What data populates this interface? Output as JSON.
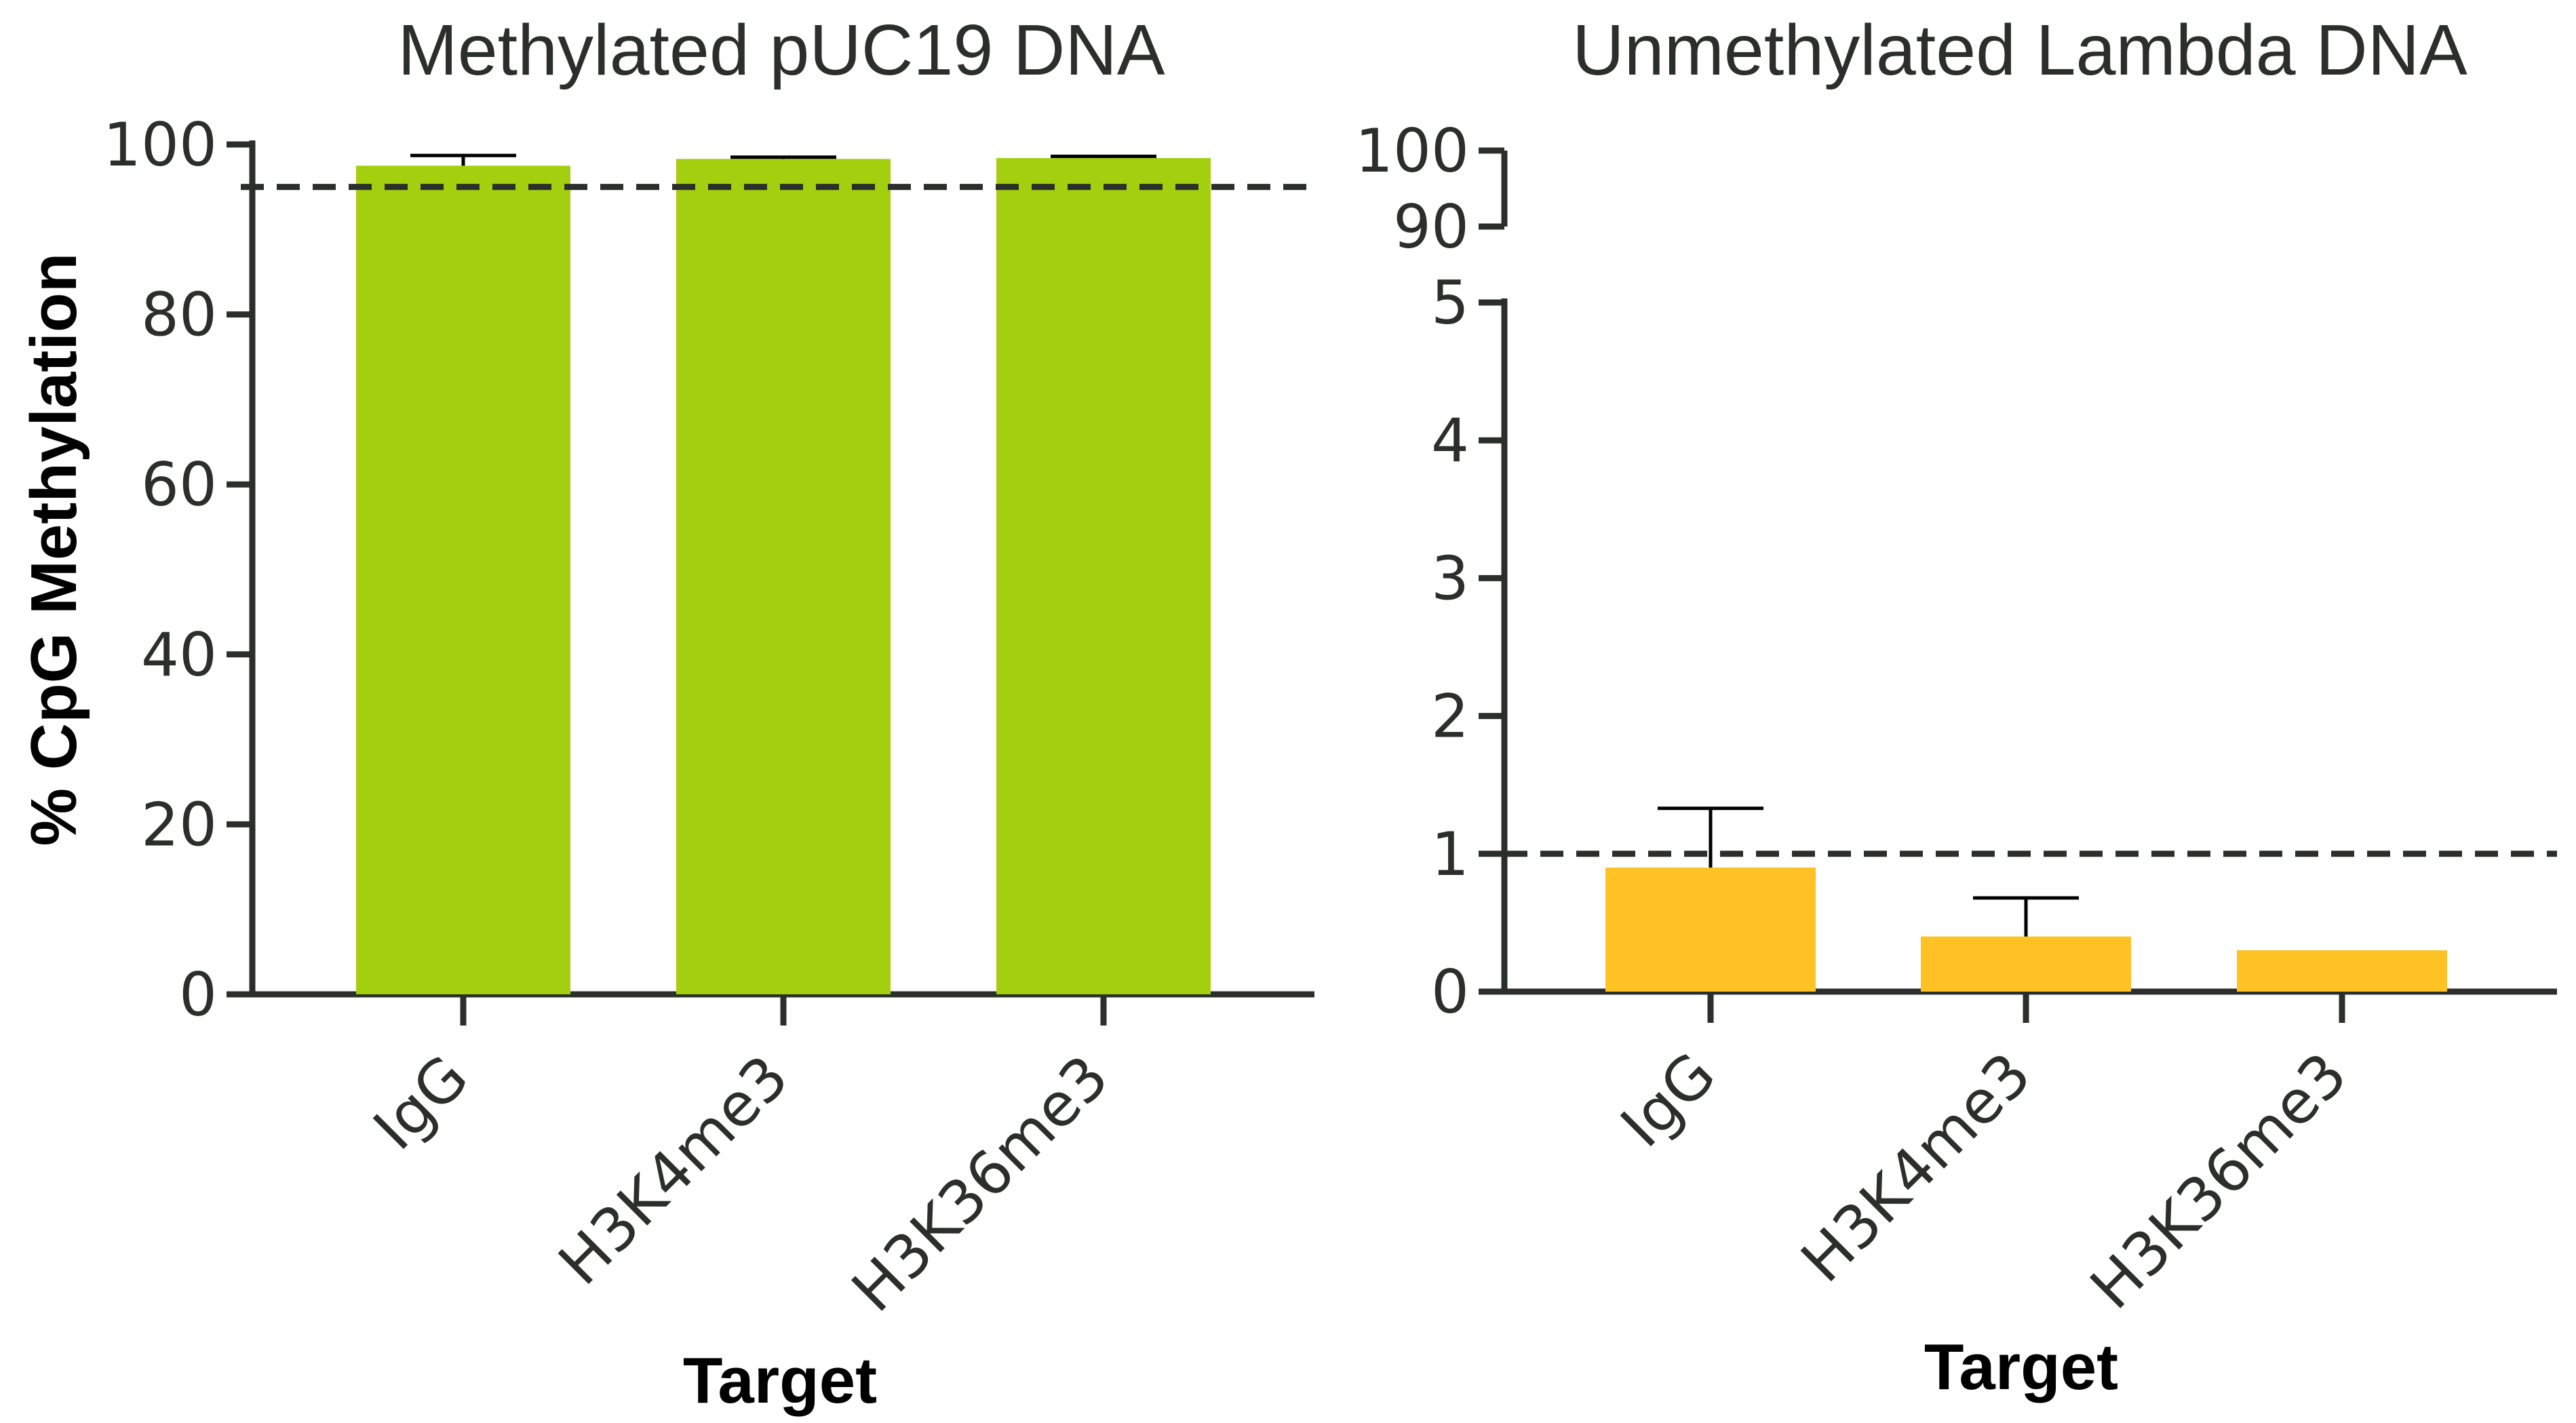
{
  "y_axis_title": "% CpG Methylation",
  "chart_data": [
    {
      "type": "bar",
      "title": "Methylated pUC19 DNA",
      "xlabel": "Target",
      "ylabel": "% CpG Methylation",
      "categories": [
        "IgG",
        "H3K4me3",
        "H3K36me3"
      ],
      "values": [
        97.5,
        98.3,
        98.4
      ],
      "error_upper": [
        98.7,
        98.5,
        98.6
      ],
      "ylim": [
        0,
        100
      ],
      "yticks": [
        0,
        20,
        40,
        60,
        80,
        100
      ],
      "reference_line": 95,
      "bar_color": "#a3cf0f"
    },
    {
      "type": "bar",
      "title": "Unmethylated Lambda DNA",
      "xlabel": "Target",
      "ylabel": "% CpG Methylation",
      "categories": [
        "IgG",
        "H3K4me3",
        "H3K36me3"
      ],
      "values": [
        0.9,
        0.4,
        0.3
      ],
      "error_upper": [
        1.33,
        0.68,
        0.3
      ],
      "ylim": [
        0,
        5
      ],
      "yticks": [
        0,
        1,
        2,
        3,
        4,
        5
      ],
      "axis_break_ticks": [
        90,
        100
      ],
      "reference_line": 1,
      "bar_color": "#fec224"
    }
  ],
  "colors": {
    "axis": "#2b2f2b",
    "reference_line": "#2b2f2b"
  }
}
